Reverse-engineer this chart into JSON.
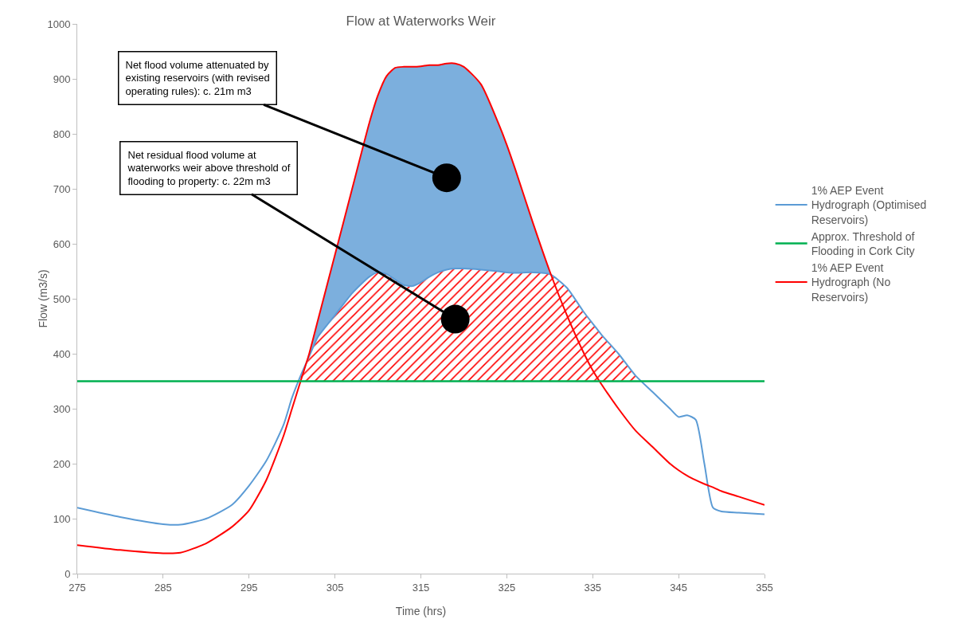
{
  "chart_data": {
    "type": "line",
    "title": "Flow at Waterworks Weir",
    "xlabel": "Time (hrs)",
    "ylabel": "Flow (m3/s)",
    "x": [
      275,
      280,
      285,
      287,
      290,
      293,
      295,
      297,
      299,
      300,
      301,
      302,
      303,
      305,
      307,
      309,
      310,
      311,
      312,
      313,
      314,
      315,
      316,
      317,
      318,
      319,
      320,
      322,
      324,
      325,
      326,
      328,
      330,
      332,
      334,
      335,
      336,
      338,
      340,
      342,
      344,
      345,
      346,
      347,
      348,
      349,
      350,
      352,
      355
    ],
    "series": [
      {
        "name": "1% AEP Event Hydrograph (Optimised Reservoirs)",
        "color": "#5b9bd5",
        "values": [
          120,
          103,
          90,
          89,
          100,
          125,
          160,
          205,
          270,
          320,
          360,
          395,
          430,
          470,
          510,
          540,
          548,
          545,
          535,
          525,
          523,
          530,
          540,
          548,
          553,
          555,
          555,
          553,
          550,
          548,
          547,
          548,
          545,
          520,
          475,
          455,
          435,
          400,
          360,
          330,
          300,
          285,
          288,
          280,
          200,
          120,
          113,
          111,
          108
        ],
        "lower": [
          null,
          null,
          null,
          null,
          null,
          null,
          null,
          null,
          null,
          null,
          null,
          395,
          430,
          470,
          510,
          540,
          548,
          545,
          535,
          525,
          523,
          530,
          540,
          548,
          553,
          555,
          555,
          553,
          550,
          548,
          547,
          548,
          545,
          null,
          null,
          null,
          null,
          null,
          null,
          null,
          null,
          null,
          null,
          null,
          null,
          null,
          null,
          null,
          null
        ],
        "upper": [
          null,
          null,
          null,
          null,
          null,
          null,
          null,
          null,
          null,
          null,
          null,
          400,
          460,
          580,
          700,
          820,
          870,
          905,
          920,
          922,
          922,
          923,
          925,
          925,
          928,
          928,
          922,
          890,
          820,
          780,
          735,
          640,
          550,
          null,
          null,
          null,
          null,
          null,
          null,
          null,
          null,
          null,
          null,
          null,
          null,
          null,
          null,
          null,
          null
        ]
      },
      {
        "name": "1% AEP Event Hydrograph (No Reservoirs)",
        "color": "#ff0000",
        "values": [
          52,
          43,
          37,
          38,
          55,
          85,
          115,
          170,
          250,
          300,
          350,
          400,
          460,
          580,
          700,
          820,
          870,
          905,
          920,
          922,
          922,
          923,
          925,
          925,
          928,
          928,
          922,
          890,
          820,
          780,
          735,
          640,
          550,
          470,
          400,
          370,
          345,
          300,
          260,
          230,
          200,
          188,
          178,
          170,
          163,
          157,
          150,
          140,
          125
        ],
        "lower": [
          null,
          null,
          null,
          null,
          null,
          null,
          null,
          null,
          null,
          null,
          350,
          350,
          350,
          350,
          350,
          350,
          350,
          350,
          350,
          350,
          350,
          350,
          350,
          350,
          350,
          350,
          350,
          350,
          350,
          350,
          350,
          350,
          350,
          350,
          350,
          350,
          350,
          350,
          350,
          null,
          null,
          null,
          null,
          null,
          null,
          null,
          null,
          null,
          null
        ],
        "upper": [
          null,
          null,
          null,
          null,
          null,
          null,
          null,
          null,
          null,
          null,
          360,
          395,
          430,
          470,
          510,
          540,
          548,
          545,
          535,
          525,
          523,
          530,
          540,
          548,
          553,
          555,
          555,
          553,
          550,
          548,
          547,
          548,
          545,
          520,
          475,
          455,
          435,
          400,
          360,
          null,
          null,
          null,
          null,
          null,
          null,
          null,
          null,
          null,
          null
        ]
      }
    ],
    "ref_lines": [
      {
        "axis": "y",
        "value": 350,
        "label": "Approx. Threshold of Flooding in Cork City",
        "color": "#00b050"
      }
    ],
    "annotations": [
      {
        "text": "Net flood volume attenuated by existing reservoirs (with revised operating rules): c. 21m m3",
        "x": 318,
        "y": 720
      },
      {
        "text": "Net residual flood volume at waterworks weir above threshold of flooding to property: c. 22m m3",
        "x": 319,
        "y": 463
      }
    ],
    "xlim": [
      275,
      355
    ],
    "xticks": [
      275,
      285,
      295,
      305,
      315,
      325,
      335,
      345,
      355
    ],
    "ylim": [
      0,
      1000
    ],
    "yticks": [
      0,
      100,
      200,
      300,
      400,
      500,
      600,
      700,
      800,
      900,
      1000
    ],
    "grid": false,
    "legend": "right",
    "line_style": "solid",
    "marker": "none"
  }
}
